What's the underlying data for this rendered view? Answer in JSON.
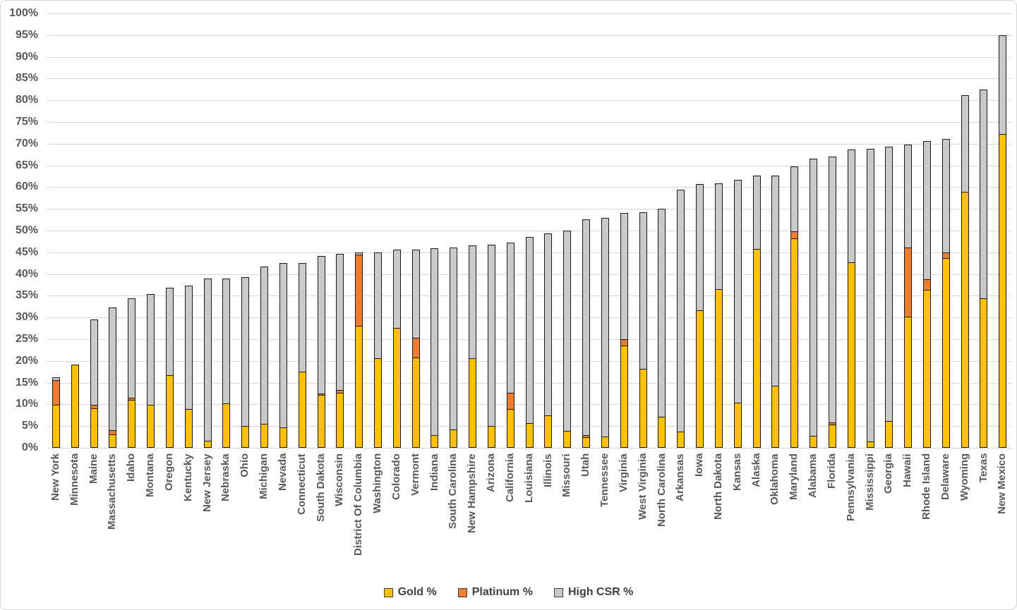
{
  "chart_data": {
    "type": "bar",
    "stacked": true,
    "title": "",
    "xlabel": "",
    "ylabel": "",
    "ylim": [
      0,
      100
    ],
    "ytick_step": 5,
    "y_tick_labels": [
      "0%",
      "5%",
      "10%",
      "15%",
      "20%",
      "25%",
      "30%",
      "35%",
      "40%",
      "45%",
      "50%",
      "55%",
      "60%",
      "65%",
      "70%",
      "75%",
      "80%",
      "85%",
      "90%",
      "95%",
      "100%"
    ],
    "grid": true,
    "legend_position": "bottom",
    "categories": [
      "New York",
      "Minnesota",
      "Maine",
      "Massachusetts",
      "Idaho",
      "Montana",
      "Oregon",
      "Kentucky",
      "New Jersey",
      "Nebraska",
      "Ohio",
      "Michigan",
      "Nevada",
      "Connecticut",
      "South Dakota",
      "Wisconsin",
      "District Of Columbia",
      "Washington",
      "Colorado",
      "Vermont",
      "Indiana",
      "South Carolina",
      "New Hampshire",
      "Arizona",
      "California",
      "Louisiana",
      "Illinois",
      "Missouri",
      "Utah",
      "Tennessee",
      "Virginia",
      "West Virginia",
      "North Carolina",
      "Arkansas",
      "Iowa",
      "North Dakota",
      "Kansas",
      "Alaska",
      "Oklahoma",
      "Maryland",
      "Alabama",
      "Florida",
      "Pennsylvania",
      "Mississippi",
      "Georgia",
      "Hawaii",
      "Rhode Island",
      "Delaware",
      "Wyoming",
      "Texas",
      "New Mexico"
    ],
    "series": [
      {
        "name": "Gold %",
        "color": "#FFC000",
        "values": [
          9.7,
          19.1,
          9.0,
          3.0,
          10.8,
          9.7,
          16.6,
          8.8,
          1.5,
          10.1,
          4.8,
          5.4,
          4.5,
          17.3,
          12.0,
          12.5,
          28.0,
          20.5,
          27.4,
          20.7,
          2.8,
          4.1,
          20.5,
          4.8,
          8.7,
          5.5,
          7.3,
          3.7,
          2.3,
          2.4,
          23.3,
          18.0,
          7.0,
          3.5,
          31.5,
          36.4,
          10.3,
          45.7,
          14.1,
          48.1,
          2.6,
          5.2,
          42.5,
          1.3,
          6.0,
          30.0,
          36.2,
          43.5,
          58.8,
          34.2,
          72.0
        ]
      },
      {
        "name": "Platinum %",
        "color": "#ED7D31",
        "values": [
          5.7,
          0,
          0.8,
          0.9,
          0.5,
          0,
          0,
          0,
          0,
          0,
          0,
          0,
          0,
          0,
          0.3,
          0.7,
          16.4,
          0,
          0,
          4.5,
          0,
          0,
          0,
          0,
          3.8,
          0,
          0,
          0,
          0.4,
          0,
          1.5,
          0,
          0,
          0,
          0,
          0,
          0,
          0,
          0,
          1.6,
          0,
          0.5,
          0,
          0,
          0,
          15.9,
          2.4,
          1.3,
          0,
          0,
          0
        ]
      },
      {
        "name": "High CSR %",
        "color": "#C9C9C9",
        "values": [
          0.9,
          0,
          19.8,
          28.4,
          23.1,
          25.7,
          20.3,
          28.5,
          37.5,
          28.9,
          34.5,
          36.4,
          38.1,
          25.3,
          31.9,
          31.5,
          0.5,
          24.5,
          18.2,
          20.5,
          43.1,
          42.0,
          26.1,
          42.0,
          34.8,
          43.1,
          42.1,
          46.3,
          49.9,
          50.6,
          29.2,
          36.3,
          48.1,
          55.9,
          29.2,
          24.4,
          51.4,
          16.9,
          48.6,
          15.1,
          64.0,
          61.4,
          26.1,
          67.6,
          63.4,
          23.9,
          32.1,
          26.3,
          22.4,
          48.2,
          22.9
        ]
      }
    ],
    "colors": {
      "grid": "#d9d9d9",
      "axis_text": "#595959",
      "bar_border": "#1a1a1a"
    }
  }
}
